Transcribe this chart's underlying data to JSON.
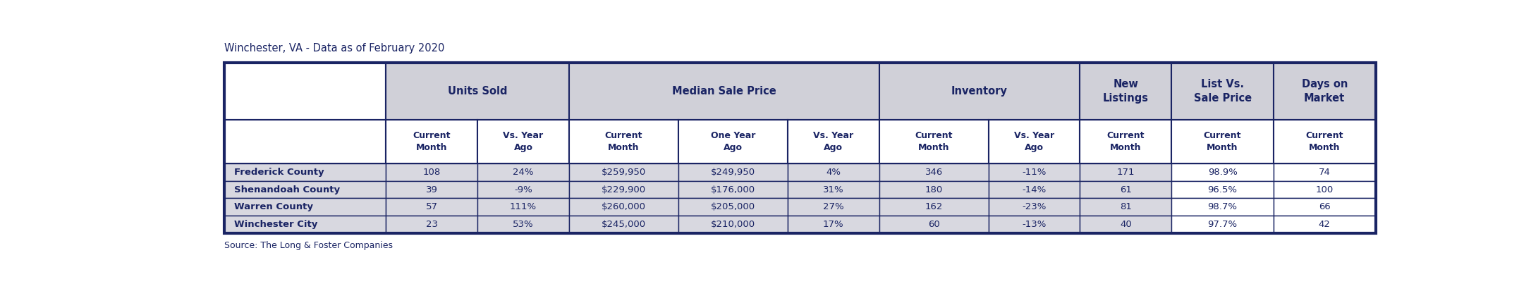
{
  "title": "Winchester, VA - Data as of February 2020",
  "source": "Source: The Long & Foster Companies",
  "header_bg": "#d0d0d8",
  "subheader_bg": "#ffffff",
  "row_bg_gray": "#d8d8e0",
  "row_bg_white": "#ffffff",
  "dark_blue": "#1a2464",
  "border_color": "#1a2464",
  "col_subheaders": [
    "Current\nMonth",
    "Vs. Year\nAgo",
    "Current\nMonth",
    "One Year\nAgo",
    "Vs. Year\nAgo",
    "Current\nMonth",
    "Vs. Year\nAgo",
    "Current\nMonth",
    "Current\nMonth",
    "Current\nMonth"
  ],
  "row_labels": [
    "Frederick County",
    "Shenandoah County",
    "Warren County",
    "Winchester City"
  ],
  "rows": [
    [
      "108",
      "24%",
      "$259,950",
      "$249,950",
      "4%",
      "346",
      "-11%",
      "171",
      "98.9%",
      "74"
    ],
    [
      "39",
      "-9%",
      "$229,900",
      "$176,000",
      "31%",
      "180",
      "-14%",
      "61",
      "96.5%",
      "100"
    ],
    [
      "57",
      "111%",
      "$260,000",
      "$205,000",
      "27%",
      "162",
      "-23%",
      "81",
      "98.7%",
      "66"
    ],
    [
      "23",
      "53%",
      "$245,000",
      "$210,000",
      "17%",
      "60",
      "-13%",
      "40",
      "97.7%",
      "42"
    ]
  ],
  "raw_col_widths": [
    1.55,
    0.88,
    0.88,
    1.05,
    1.05,
    0.88,
    1.05,
    0.88,
    0.88,
    0.98,
    0.98
  ],
  "group_spans": [
    [
      1,
      2,
      "Units Sold"
    ],
    [
      3,
      5,
      "Median Sale Price"
    ],
    [
      6,
      7,
      "Inventory"
    ],
    [
      8,
      8,
      "New\nListings"
    ],
    [
      9,
      9,
      "List Vs.\nSale Price"
    ],
    [
      10,
      10,
      "Days on\nMarket"
    ]
  ],
  "gray_data_cols": [
    0,
    1,
    2,
    3,
    4,
    5,
    6,
    7
  ],
  "white_data_cols": [
    8,
    9
  ]
}
